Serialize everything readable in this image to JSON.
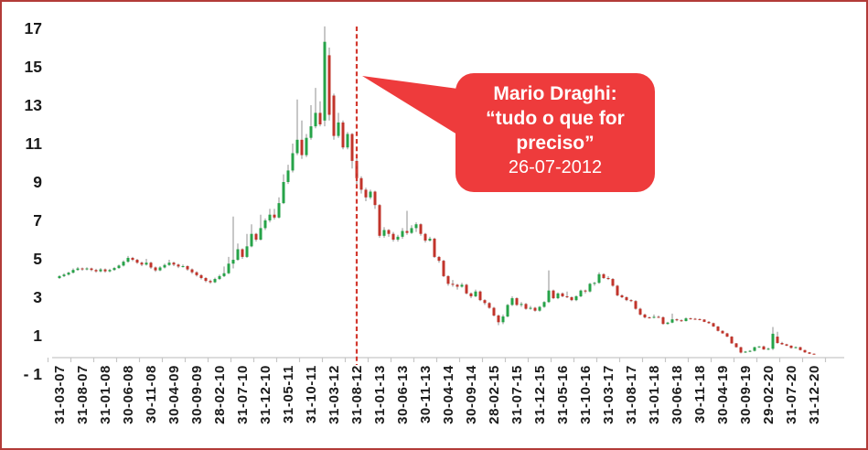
{
  "frame": {
    "border_color": "#b23b38",
    "background": "#ffffff"
  },
  "annotation": {
    "line1": "Mario Draghi:",
    "line2": "“tudo o que for",
    "line3": "preciso”",
    "date": "26-07-2012",
    "bubble_color": "#ee3b3c",
    "text_color": "#ffffff"
  },
  "chart_data": {
    "type": "candlestick",
    "ylim": [
      -1,
      17.5
    ],
    "grid": false,
    "legend": false,
    "y_tick_values": [
      17,
      15,
      13,
      11,
      9,
      7,
      5,
      3,
      1,
      -1
    ],
    "y_tick_labels": [
      "17",
      "15",
      "13",
      "11",
      "9",
      "7",
      "5",
      "3",
      "1",
      "- 1"
    ],
    "x_label_interval": 5,
    "x_tick_labels": [
      "31-03-07",
      "31-08-07",
      "31-01-08",
      "30-06-08",
      "30-11-08",
      "30-04-09",
      "30-09-09",
      "28-02-10",
      "31-07-10",
      "31-12-10",
      "31-05-11",
      "31-10-11",
      "31-03-12",
      "31-08-12",
      "31-01-13",
      "30-06-13",
      "30-11-13",
      "30-04-14",
      "30-09-14",
      "28-02-15",
      "31-07-15",
      "31-12-15",
      "31-05-16",
      "31-10-16",
      "31-03-17",
      "31-08-17",
      "31-01-18",
      "30-06-18",
      "30-11-18",
      "30-04-19",
      "30-09-19",
      "29-02-20",
      "31-07-20",
      "31-12-20"
    ],
    "event_line": {
      "date": "31-08-12",
      "index": 65,
      "color": "#d3392f",
      "style": "dashed"
    },
    "colors": {
      "up": "#26a348",
      "down": "#c1342b",
      "wick": "#8f8f8f",
      "axis": "#c6c6c6"
    },
    "candles": [
      [
        "31-03-07",
        4.0,
        4.15,
        3.95,
        4.1
      ],
      [
        "30-04-07",
        4.1,
        4.25,
        4.05,
        4.18
      ],
      [
        "31-05-07",
        4.18,
        4.33,
        4.13,
        4.28
      ],
      [
        "30-06-07",
        4.28,
        4.5,
        4.24,
        4.42
      ],
      [
        "31-07-07",
        4.42,
        4.58,
        4.38,
        4.5
      ],
      [
        "31-08-07",
        4.5,
        4.55,
        4.38,
        4.45
      ],
      [
        "30-09-07",
        4.45,
        4.56,
        4.4,
        4.5
      ],
      [
        "31-10-07",
        4.5,
        4.54,
        4.36,
        4.42
      ],
      [
        "30-11-07",
        4.42,
        4.48,
        4.28,
        4.35
      ],
      [
        "31-12-07",
        4.35,
        4.52,
        4.3,
        4.45
      ],
      [
        "31-01-08",
        4.45,
        4.5,
        4.28,
        4.35
      ],
      [
        "29-02-08",
        4.35,
        4.48,
        4.3,
        4.42
      ],
      [
        "31-03-08",
        4.42,
        4.58,
        4.38,
        4.52
      ],
      [
        "30-04-08",
        4.52,
        4.7,
        4.48,
        4.65
      ],
      [
        "31-05-08",
        4.65,
        4.92,
        4.6,
        4.85
      ],
      [
        "30-06-08",
        4.85,
        5.15,
        4.8,
        5.05
      ],
      [
        "31-07-08",
        5.05,
        5.1,
        4.88,
        4.95
      ],
      [
        "31-08-08",
        4.95,
        5.0,
        4.74,
        4.8
      ],
      [
        "30-09-08",
        4.8,
        4.86,
        4.62,
        4.7
      ],
      [
        "31-10-08",
        4.7,
        5.0,
        4.65,
        4.8
      ],
      [
        "30-11-08",
        4.8,
        4.85,
        4.48,
        4.55
      ],
      [
        "31-12-08",
        4.55,
        4.6,
        4.32,
        4.4
      ],
      [
        "31-01-09",
        4.4,
        4.62,
        4.36,
        4.55
      ],
      [
        "28-02-09",
        4.55,
        4.75,
        4.5,
        4.68
      ],
      [
        "31-03-09",
        4.68,
        4.95,
        4.63,
        4.8
      ],
      [
        "30-04-09",
        4.8,
        4.85,
        4.62,
        4.7
      ],
      [
        "31-05-09",
        4.7,
        4.75,
        4.52,
        4.6
      ],
      [
        "30-06-09",
        4.6,
        4.7,
        4.55,
        4.62
      ],
      [
        "31-07-09",
        4.62,
        4.66,
        4.38,
        4.45
      ],
      [
        "31-08-09",
        4.45,
        4.5,
        4.22,
        4.3
      ],
      [
        "30-09-09",
        4.3,
        4.35,
        4.08,
        4.15
      ],
      [
        "31-10-09",
        4.15,
        4.2,
        3.93,
        4.0
      ],
      [
        "30-11-09",
        4.0,
        4.05,
        3.78,
        3.85
      ],
      [
        "31-12-09",
        3.85,
        3.92,
        3.7,
        3.78
      ],
      [
        "31-01-10",
        3.78,
        4.02,
        3.74,
        3.95
      ],
      [
        "28-02-10",
        3.95,
        4.18,
        3.9,
        4.1
      ],
      [
        "31-03-10",
        4.1,
        4.6,
        4.05,
        4.25
      ],
      [
        "30-04-10",
        4.25,
        5.1,
        4.2,
        4.75
      ],
      [
        "31-05-10",
        4.75,
        7.2,
        4.5,
        4.95
      ],
      [
        "30-06-10",
        4.95,
        5.8,
        4.9,
        5.5
      ],
      [
        "31-07-10",
        5.5,
        5.55,
        5.0,
        5.1
      ],
      [
        "31-08-10",
        5.1,
        6.3,
        5.05,
        5.65
      ],
      [
        "30-09-10",
        5.65,
        6.8,
        5.6,
        6.3
      ],
      [
        "31-10-10",
        6.3,
        6.35,
        5.9,
        6.0
      ],
      [
        "30-11-10",
        6.0,
        7.3,
        5.95,
        6.6
      ],
      [
        "31-12-10",
        6.6,
        7.1,
        6.5,
        7.0
      ],
      [
        "31-01-11",
        7.0,
        7.6,
        6.9,
        7.3
      ],
      [
        "28-02-11",
        7.3,
        7.6,
        7.05,
        7.15
      ],
      [
        "31-03-11",
        7.15,
        8.2,
        7.1,
        7.9
      ],
      [
        "30-04-11",
        7.9,
        9.4,
        7.85,
        9.0
      ],
      [
        "31-05-11",
        9.0,
        9.9,
        8.9,
        9.6
      ],
      [
        "30-06-11",
        9.6,
        11.0,
        9.5,
        10.5
      ],
      [
        "31-07-11",
        10.5,
        13.3,
        10.4,
        11.2
      ],
      [
        "31-08-11",
        11.2,
        12.2,
        10.2,
        10.4
      ],
      [
        "30-09-11",
        10.4,
        11.5,
        10.3,
        11.3
      ],
      [
        "31-10-11",
        11.3,
        13.0,
        11.2,
        11.9
      ],
      [
        "30-11-11",
        11.9,
        13.9,
        11.8,
        12.6
      ],
      [
        "31-12-11",
        12.6,
        13.2,
        11.9,
        12.0
      ],
      [
        "31-01-12",
        12.2,
        17.1,
        11.9,
        16.3
      ],
      [
        "29-02-12",
        15.6,
        16.0,
        12.2,
        12.5
      ],
      [
        "31-03-12",
        13.5,
        13.6,
        11.2,
        11.4
      ],
      [
        "30-04-12",
        11.4,
        12.6,
        11.3,
        12.1
      ],
      [
        "31-05-12",
        12.1,
        12.2,
        10.7,
        10.8
      ],
      [
        "30-06-12",
        10.8,
        11.6,
        10.7,
        11.5
      ],
      [
        "31-07-12",
        11.5,
        11.55,
        9.7,
        10.1
      ],
      [
        "31-08-12",
        10.1,
        10.2,
        8.9,
        9.2
      ],
      [
        "30-09-12",
        9.2,
        9.3,
        8.4,
        8.6
      ],
      [
        "31-10-12",
        8.6,
        8.7,
        8.0,
        8.2
      ],
      [
        "30-11-12",
        8.2,
        8.6,
        8.1,
        8.5
      ],
      [
        "31-12-12",
        8.5,
        8.55,
        7.6,
        7.8
      ],
      [
        "31-01-13",
        7.8,
        7.85,
        6.1,
        6.2
      ],
      [
        "28-02-13",
        6.2,
        6.65,
        6.1,
        6.5
      ],
      [
        "31-03-13",
        6.5,
        6.55,
        6.15,
        6.3
      ],
      [
        "30-04-13",
        6.3,
        6.4,
        5.9,
        6.0
      ],
      [
        "31-05-13",
        6.0,
        6.25,
        5.9,
        6.15
      ],
      [
        "30-06-13",
        6.15,
        6.6,
        6.05,
        6.45
      ],
      [
        "31-07-13",
        6.45,
        7.5,
        6.25,
        6.35
      ],
      [
        "31-08-13",
        6.35,
        6.75,
        6.3,
        6.6
      ],
      [
        "30-09-13",
        6.6,
        6.9,
        6.4,
        6.8
      ],
      [
        "31-10-13",
        6.8,
        6.85,
        6.2,
        6.3
      ],
      [
        "30-11-13",
        6.3,
        6.35,
        5.85,
        5.95
      ],
      [
        "31-12-13",
        5.95,
        6.15,
        5.9,
        6.05
      ],
      [
        "31-01-14",
        6.05,
        6.1,
        5.05,
        5.1
      ],
      [
        "28-02-14",
        5.1,
        5.15,
        4.8,
        4.9
      ],
      [
        "31-03-14",
        4.9,
        4.95,
        4.05,
        4.1
      ],
      [
        "30-04-14",
        4.1,
        4.15,
        3.6,
        3.7
      ],
      [
        "31-05-14",
        3.7,
        3.9,
        3.55,
        3.65
      ],
      [
        "30-06-14",
        3.65,
        3.7,
        3.4,
        3.55
      ],
      [
        "31-07-14",
        3.55,
        3.75,
        3.5,
        3.65
      ],
      [
        "31-08-14",
        3.65,
        3.7,
        3.15,
        3.2
      ],
      [
        "30-09-14",
        3.2,
        3.25,
        2.95,
        3.05
      ],
      [
        "31-10-14",
        3.05,
        3.4,
        3.0,
        3.3
      ],
      [
        "30-11-14",
        3.3,
        3.35,
        2.8,
        2.85
      ],
      [
        "31-12-14",
        2.85,
        2.9,
        2.6,
        2.7
      ],
      [
        "31-01-15",
        2.7,
        2.75,
        2.4,
        2.45
      ],
      [
        "28-02-15",
        2.45,
        2.5,
        2.0,
        2.05
      ],
      [
        "31-03-15",
        2.05,
        2.1,
        1.55,
        1.7
      ],
      [
        "30-04-15",
        1.7,
        2.1,
        1.6,
        2.0
      ],
      [
        "31-05-15",
        2.0,
        2.65,
        1.95,
        2.6
      ],
      [
        "30-06-15",
        2.6,
        3.05,
        2.55,
        2.95
      ],
      [
        "31-07-15",
        2.95,
        3.0,
        2.55,
        2.6
      ],
      [
        "31-08-15",
        2.6,
        2.75,
        2.5,
        2.65
      ],
      [
        "30-09-15",
        2.65,
        2.7,
        2.35,
        2.4
      ],
      [
        "31-10-15",
        2.4,
        2.55,
        2.35,
        2.45
      ],
      [
        "30-11-15",
        2.45,
        2.5,
        2.25,
        2.3
      ],
      [
        "31-12-15",
        2.3,
        2.55,
        2.25,
        2.5
      ],
      [
        "31-01-16",
        2.5,
        2.8,
        2.45,
        2.75
      ],
      [
        "29-02-16",
        2.75,
        4.4,
        2.7,
        3.35
      ],
      [
        "31-03-16",
        3.35,
        3.4,
        2.9,
        2.95
      ],
      [
        "30-04-16",
        2.95,
        3.25,
        2.9,
        3.2
      ],
      [
        "31-05-16",
        3.2,
        3.25,
        3.0,
        3.05
      ],
      [
        "30-06-16",
        3.05,
        3.3,
        2.95,
        3.0
      ],
      [
        "31-07-16",
        3.0,
        3.05,
        2.8,
        2.85
      ],
      [
        "31-08-16",
        2.85,
        3.1,
        2.8,
        3.05
      ],
      [
        "30-09-16",
        3.05,
        3.4,
        3.0,
        3.35
      ],
      [
        "31-10-16",
        3.35,
        3.4,
        3.2,
        3.3
      ],
      [
        "30-11-16",
        3.3,
        3.75,
        3.25,
        3.7
      ],
      [
        "31-12-16",
        3.7,
        3.8,
        3.6,
        3.75
      ],
      [
        "31-01-17",
        3.75,
        4.3,
        3.7,
        4.2
      ],
      [
        "28-02-17",
        4.2,
        4.25,
        3.95,
        4.0
      ],
      [
        "31-03-17",
        4.0,
        4.1,
        3.9,
        3.95
      ],
      [
        "30-04-17",
        3.95,
        4.0,
        3.55,
        3.6
      ],
      [
        "31-05-17",
        3.6,
        3.65,
        3.05,
        3.1
      ],
      [
        "30-06-17",
        3.1,
        3.15,
        2.95,
        3.0
      ],
      [
        "31-07-17",
        3.0,
        3.05,
        2.8,
        2.85
      ],
      [
        "31-08-17",
        2.85,
        2.9,
        2.75,
        2.8
      ],
      [
        "30-09-17",
        2.8,
        2.85,
        2.35,
        2.4
      ],
      [
        "31-10-17",
        2.4,
        2.45,
        2.05,
        2.1
      ],
      [
        "30-11-17",
        2.1,
        2.15,
        1.9,
        1.95
      ],
      [
        "31-12-17",
        1.95,
        2.0,
        1.9,
        1.94
      ],
      [
        "31-01-18",
        1.94,
        2.1,
        1.9,
        1.98
      ],
      [
        "28-02-18",
        1.98,
        2.05,
        1.92,
        1.96
      ],
      [
        "31-03-18",
        1.96,
        2.0,
        1.58,
        1.61
      ],
      [
        "30-04-18",
        1.61,
        1.72,
        1.58,
        1.68
      ],
      [
        "31-05-18",
        1.68,
        2.15,
        1.65,
        1.85
      ],
      [
        "30-06-18",
        1.85,
        1.9,
        1.75,
        1.8
      ],
      [
        "31-07-18",
        1.8,
        1.85,
        1.72,
        1.76
      ],
      [
        "31-08-18",
        1.76,
        1.95,
        1.74,
        1.9
      ],
      [
        "30-09-18",
        1.9,
        1.94,
        1.84,
        1.88
      ],
      [
        "31-10-18",
        1.88,
        1.92,
        1.82,
        1.86
      ],
      [
        "30-11-18",
        1.86,
        1.9,
        1.8,
        1.84
      ],
      [
        "31-12-18",
        1.84,
        1.86,
        1.7,
        1.72
      ],
      [
        "31-01-19",
        1.72,
        1.76,
        1.62,
        1.65
      ],
      [
        "28-02-19",
        1.65,
        1.68,
        1.45,
        1.48
      ],
      [
        "31-03-19",
        1.48,
        1.5,
        1.22,
        1.25
      ],
      [
        "30-04-19",
        1.25,
        1.28,
        1.1,
        1.12
      ],
      [
        "31-05-19",
        1.12,
        1.15,
        0.92,
        0.95
      ],
      [
        "30-06-19",
        0.95,
        0.98,
        0.58,
        0.6
      ],
      [
        "31-07-19",
        0.6,
        0.62,
        0.38,
        0.4
      ],
      [
        "31-08-19",
        0.4,
        0.42,
        0.08,
        0.12
      ],
      [
        "30-09-19",
        0.12,
        0.2,
        0.1,
        0.17
      ],
      [
        "31-10-19",
        0.17,
        0.25,
        0.14,
        0.21
      ],
      [
        "30-11-19",
        0.21,
        0.42,
        0.18,
        0.4
      ],
      [
        "31-12-19",
        0.4,
        0.46,
        0.36,
        0.44
      ],
      [
        "31-01-20",
        0.44,
        0.48,
        0.26,
        0.28
      ],
      [
        "29-02-20",
        0.28,
        0.38,
        0.25,
        0.32
      ],
      [
        "31-03-20",
        0.32,
        1.45,
        0.25,
        1.1
      ],
      [
        "30-04-20",
        0.95,
        1.2,
        0.58,
        0.62
      ],
      [
        "31-05-20",
        0.62,
        0.68,
        0.52,
        0.55
      ],
      [
        "30-06-20",
        0.55,
        0.58,
        0.45,
        0.48
      ],
      [
        "31-07-20",
        0.48,
        0.5,
        0.33,
        0.36
      ],
      [
        "31-08-20",
        0.36,
        0.44,
        0.34,
        0.4
      ],
      [
        "30-09-20",
        0.4,
        0.42,
        0.23,
        0.25
      ],
      [
        "31-10-20",
        0.25,
        0.27,
        0.11,
        0.13
      ],
      [
        "30-11-20",
        0.13,
        0.15,
        0.04,
        0.06
      ],
      [
        "31-12-20",
        0.06,
        0.08,
        0.02,
        0.03
      ]
    ]
  }
}
